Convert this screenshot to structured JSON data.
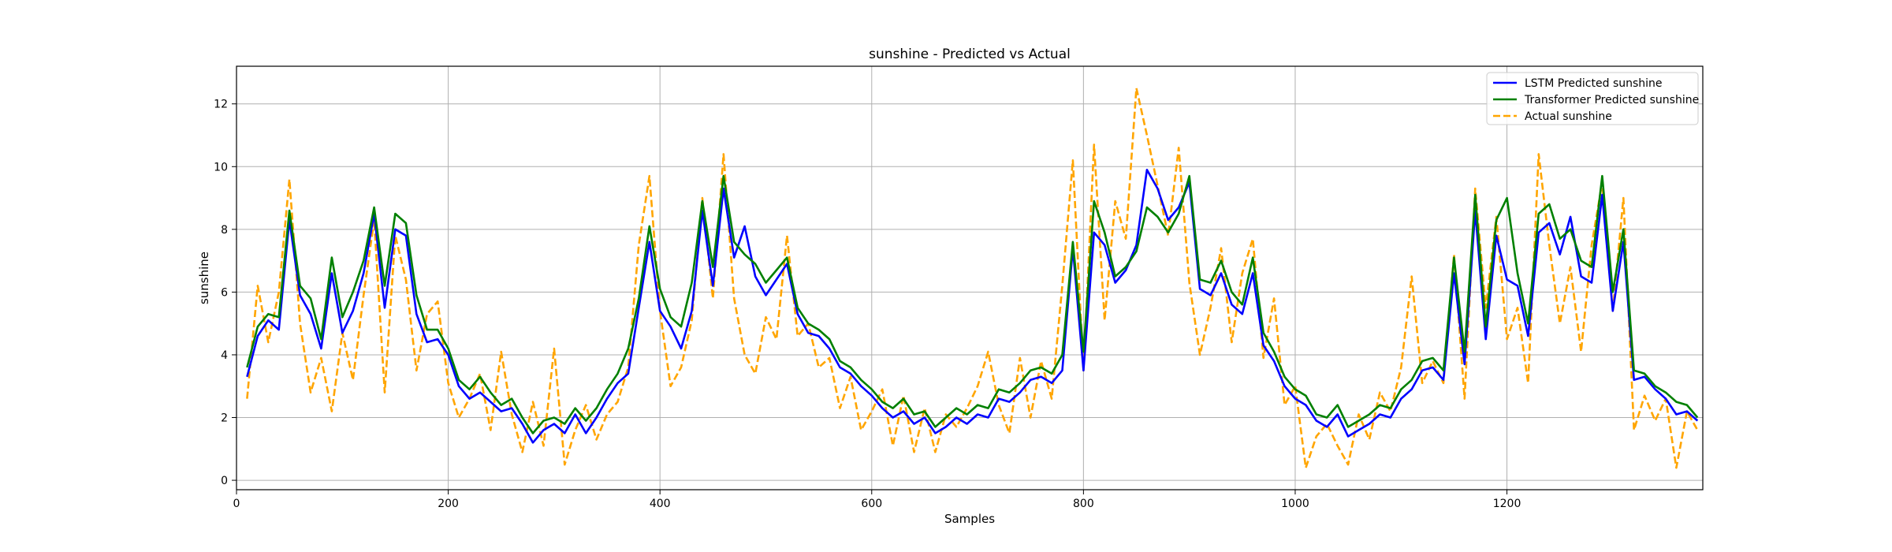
{
  "chart_data": {
    "type": "line",
    "title": "sunshine - Predicted vs Actual",
    "xlabel": "Samples",
    "ylabel": "sunshine",
    "xlim": [
      0,
      1385
    ],
    "ylim": [
      -0.3,
      13.2
    ],
    "xticks": [
      0,
      200,
      400,
      600,
      800,
      1000,
      1200
    ],
    "yticks": [
      0,
      2,
      4,
      6,
      8,
      10,
      12
    ],
    "grid": true,
    "legend_position": "top-right",
    "colors": {
      "lstm": "#0000ff",
      "transformer": "#008000",
      "actual": "#ffa500"
    },
    "series": [
      {
        "name": "LSTM Predicted sunshine",
        "style": "solid",
        "x": [
          10,
          20,
          30,
          40,
          50,
          60,
          70,
          80,
          90,
          100,
          110,
          120,
          130,
          140,
          150,
          160,
          170,
          180,
          190,
          200,
          210,
          220,
          230,
          240,
          250,
          260,
          270,
          280,
          290,
          300,
          310,
          320,
          330,
          340,
          350,
          360,
          370,
          380,
          390,
          400,
          410,
          420,
          430,
          440,
          450,
          460,
          470,
          480,
          490,
          500,
          510,
          520,
          530,
          540,
          550,
          560,
          570,
          580,
          590,
          600,
          610,
          620,
          630,
          640,
          650,
          660,
          670,
          680,
          690,
          700,
          710,
          720,
          730,
          740,
          750,
          760,
          770,
          780,
          790,
          800,
          810,
          820,
          830,
          840,
          850,
          860,
          870,
          880,
          890,
          900,
          910,
          920,
          930,
          940,
          950,
          960,
          970,
          980,
          990,
          1000,
          1010,
          1020,
          1030,
          1040,
          1050,
          1060,
          1070,
          1080,
          1090,
          1100,
          1110,
          1120,
          1130,
          1140,
          1150,
          1160,
          1170,
          1180,
          1190,
          1200,
          1210,
          1220,
          1230,
          1240,
          1250,
          1260,
          1270,
          1280,
          1290,
          1300,
          1310,
          1320,
          1330,
          1340,
          1350,
          1360,
          1370,
          1380
        ],
        "y": [
          3.3,
          4.6,
          5.1,
          4.8,
          8.3,
          5.9,
          5.3,
          4.2,
          6.6,
          4.7,
          5.4,
          6.6,
          8.5,
          5.5,
          8.0,
          7.8,
          5.3,
          4.4,
          4.5,
          4.0,
          3.0,
          2.6,
          2.8,
          2.5,
          2.2,
          2.3,
          1.8,
          1.2,
          1.6,
          1.8,
          1.5,
          2.1,
          1.5,
          2.0,
          2.6,
          3.1,
          3.4,
          5.5,
          7.6,
          5.4,
          4.9,
          4.2,
          5.4,
          8.6,
          6.2,
          9.3,
          7.1,
          8.1,
          6.5,
          5.9,
          6.4,
          6.9,
          5.3,
          4.7,
          4.6,
          4.2,
          3.6,
          3.4,
          3.0,
          2.7,
          2.3,
          2.0,
          2.2,
          1.8,
          2.0,
          1.5,
          1.7,
          2.0,
          1.8,
          2.1,
          2.0,
          2.6,
          2.5,
          2.8,
          3.2,
          3.3,
          3.1,
          3.5,
          7.4,
          3.5,
          7.9,
          7.5,
          6.3,
          6.7,
          7.5,
          9.9,
          9.3,
          8.3,
          8.7,
          9.5,
          6.1,
          5.9,
          6.6,
          5.6,
          5.3,
          6.6,
          4.3,
          3.8,
          3.0,
          2.6,
          2.4,
          1.9,
          1.7,
          2.1,
          1.4,
          1.6,
          1.8,
          2.1,
          2.0,
          2.6,
          2.9,
          3.5,
          3.6,
          3.2,
          6.6,
          3.7,
          8.6,
          4.5,
          7.8,
          6.4,
          6.2,
          4.6,
          7.9,
          8.2,
          7.2,
          8.4,
          6.5,
          6.3,
          9.1,
          5.4,
          7.6,
          3.2,
          3.3,
          2.9,
          2.6,
          2.1,
          2.2,
          1.9
        ]
      },
      {
        "name": "Transformer Predicted sunshine",
        "style": "solid",
        "x": [
          10,
          20,
          30,
          40,
          50,
          60,
          70,
          80,
          90,
          100,
          110,
          120,
          130,
          140,
          150,
          160,
          170,
          180,
          190,
          200,
          210,
          220,
          230,
          240,
          250,
          260,
          270,
          280,
          290,
          300,
          310,
          320,
          330,
          340,
          350,
          360,
          370,
          380,
          390,
          400,
          410,
          420,
          430,
          440,
          450,
          460,
          470,
          480,
          490,
          500,
          510,
          520,
          530,
          540,
          550,
          560,
          570,
          580,
          590,
          600,
          610,
          620,
          630,
          640,
          650,
          660,
          670,
          680,
          690,
          700,
          710,
          720,
          730,
          740,
          750,
          760,
          770,
          780,
          790,
          800,
          810,
          820,
          830,
          840,
          850,
          860,
          870,
          880,
          890,
          900,
          910,
          920,
          930,
          940,
          950,
          960,
          970,
          980,
          990,
          1000,
          1010,
          1020,
          1030,
          1040,
          1050,
          1060,
          1070,
          1080,
          1090,
          1100,
          1110,
          1120,
          1130,
          1140,
          1150,
          1160,
          1170,
          1180,
          1190,
          1200,
          1210,
          1220,
          1230,
          1240,
          1250,
          1260,
          1270,
          1280,
          1290,
          1300,
          1310,
          1320,
          1330,
          1340,
          1350,
          1360,
          1370,
          1380
        ],
        "y": [
          3.6,
          4.9,
          5.3,
          5.2,
          8.6,
          6.2,
          5.8,
          4.5,
          7.1,
          5.2,
          6.0,
          7.0,
          8.7,
          6.2,
          8.5,
          8.2,
          5.9,
          4.8,
          4.8,
          4.2,
          3.2,
          2.9,
          3.3,
          2.8,
          2.4,
          2.6,
          2.0,
          1.5,
          1.9,
          2.0,
          1.8,
          2.3,
          1.9,
          2.3,
          2.9,
          3.4,
          4.2,
          5.8,
          8.1,
          6.1,
          5.2,
          4.9,
          6.3,
          8.9,
          6.8,
          9.7,
          7.6,
          7.2,
          6.9,
          6.3,
          6.7,
          7.1,
          5.5,
          5.0,
          4.8,
          4.5,
          3.8,
          3.6,
          3.2,
          2.9,
          2.5,
          2.3,
          2.6,
          2.1,
          2.2,
          1.7,
          2.0,
          2.3,
          2.1,
          2.4,
          2.3,
          2.9,
          2.8,
          3.1,
          3.5,
          3.6,
          3.4,
          4.0,
          7.6,
          4.1,
          8.9,
          7.9,
          6.5,
          6.8,
          7.3,
          8.7,
          8.4,
          7.9,
          8.5,
          9.7,
          6.4,
          6.3,
          7.0,
          6.0,
          5.6,
          7.1,
          4.7,
          4.1,
          3.3,
          2.9,
          2.7,
          2.1,
          2.0,
          2.4,
          1.7,
          1.9,
          2.1,
          2.4,
          2.3,
          2.9,
          3.2,
          3.8,
          3.9,
          3.5,
          7.1,
          4.1,
          9.1,
          4.9,
          8.3,
          9.0,
          6.6,
          5.0,
          8.5,
          8.8,
          7.7,
          8.0,
          7.0,
          6.8,
          9.7,
          6.0,
          8.0,
          3.5,
          3.4,
          3.0,
          2.8,
          2.5,
          2.4,
          2.0
        ]
      },
      {
        "name": "Actual sunshine",
        "style": "dashed",
        "x": [
          10,
          20,
          30,
          40,
          50,
          60,
          70,
          80,
          90,
          100,
          110,
          120,
          130,
          140,
          150,
          160,
          170,
          180,
          190,
          200,
          210,
          220,
          230,
          240,
          250,
          260,
          270,
          280,
          290,
          300,
          310,
          320,
          330,
          340,
          350,
          360,
          370,
          380,
          390,
          400,
          410,
          420,
          430,
          440,
          450,
          460,
          470,
          480,
          490,
          500,
          510,
          520,
          530,
          540,
          550,
          560,
          570,
          580,
          590,
          600,
          610,
          620,
          630,
          640,
          650,
          660,
          670,
          680,
          690,
          700,
          710,
          720,
          730,
          740,
          750,
          760,
          770,
          780,
          790,
          800,
          810,
          820,
          830,
          840,
          850,
          860,
          870,
          880,
          890,
          900,
          910,
          920,
          930,
          940,
          950,
          960,
          970,
          980,
          990,
          1000,
          1010,
          1020,
          1030,
          1040,
          1050,
          1060,
          1070,
          1080,
          1090,
          1100,
          1110,
          1120,
          1130,
          1140,
          1150,
          1160,
          1170,
          1180,
          1190,
          1200,
          1210,
          1220,
          1230,
          1240,
          1250,
          1260,
          1270,
          1280,
          1290,
          1300,
          1310,
          1320,
          1330,
          1340,
          1350,
          1360,
          1370,
          1380
        ],
        "y": [
          2.6,
          6.2,
          4.4,
          6.0,
          9.6,
          5.0,
          2.8,
          3.9,
          2.2,
          4.7,
          3.2,
          5.9,
          8.3,
          2.8,
          7.8,
          6.4,
          3.5,
          5.3,
          5.7,
          3.1,
          2.0,
          2.6,
          3.4,
          1.6,
          4.1,
          2.1,
          0.9,
          2.5,
          1.1,
          4.2,
          0.5,
          1.6,
          2.4,
          1.3,
          2.1,
          2.5,
          3.6,
          7.5,
          9.7,
          5.4,
          3.0,
          3.6,
          5.1,
          9.0,
          5.8,
          10.4,
          5.8,
          4.0,
          3.4,
          5.2,
          4.5,
          7.8,
          4.6,
          5.0,
          3.6,
          3.9,
          2.3,
          3.3,
          1.6,
          2.2,
          2.9,
          1.1,
          2.7,
          0.9,
          2.3,
          0.9,
          2.1,
          1.7,
          2.3,
          3.0,
          4.1,
          2.4,
          1.5,
          3.9,
          2.0,
          3.8,
          2.6,
          6.2,
          10.2,
          3.5,
          10.7,
          5.1,
          8.9,
          7.7,
          12.5,
          11.0,
          9.4,
          7.8,
          10.6,
          6.3,
          4.0,
          5.5,
          7.4,
          4.4,
          6.6,
          7.7,
          3.9,
          5.8,
          2.4,
          3.0,
          0.4,
          1.4,
          1.8,
          1.1,
          0.5,
          2.1,
          1.3,
          2.8,
          2.2,
          3.6,
          6.5,
          3.1,
          3.8,
          3.1,
          7.2,
          2.6,
          9.3,
          5.5,
          8.4,
          4.5,
          5.5,
          3.1,
          10.4,
          7.5,
          5.0,
          6.8,
          4.1,
          7.5,
          9.5,
          5.4,
          9.0,
          1.6,
          2.7,
          1.9,
          2.6,
          0.4,
          2.2,
          1.6
        ]
      }
    ]
  }
}
